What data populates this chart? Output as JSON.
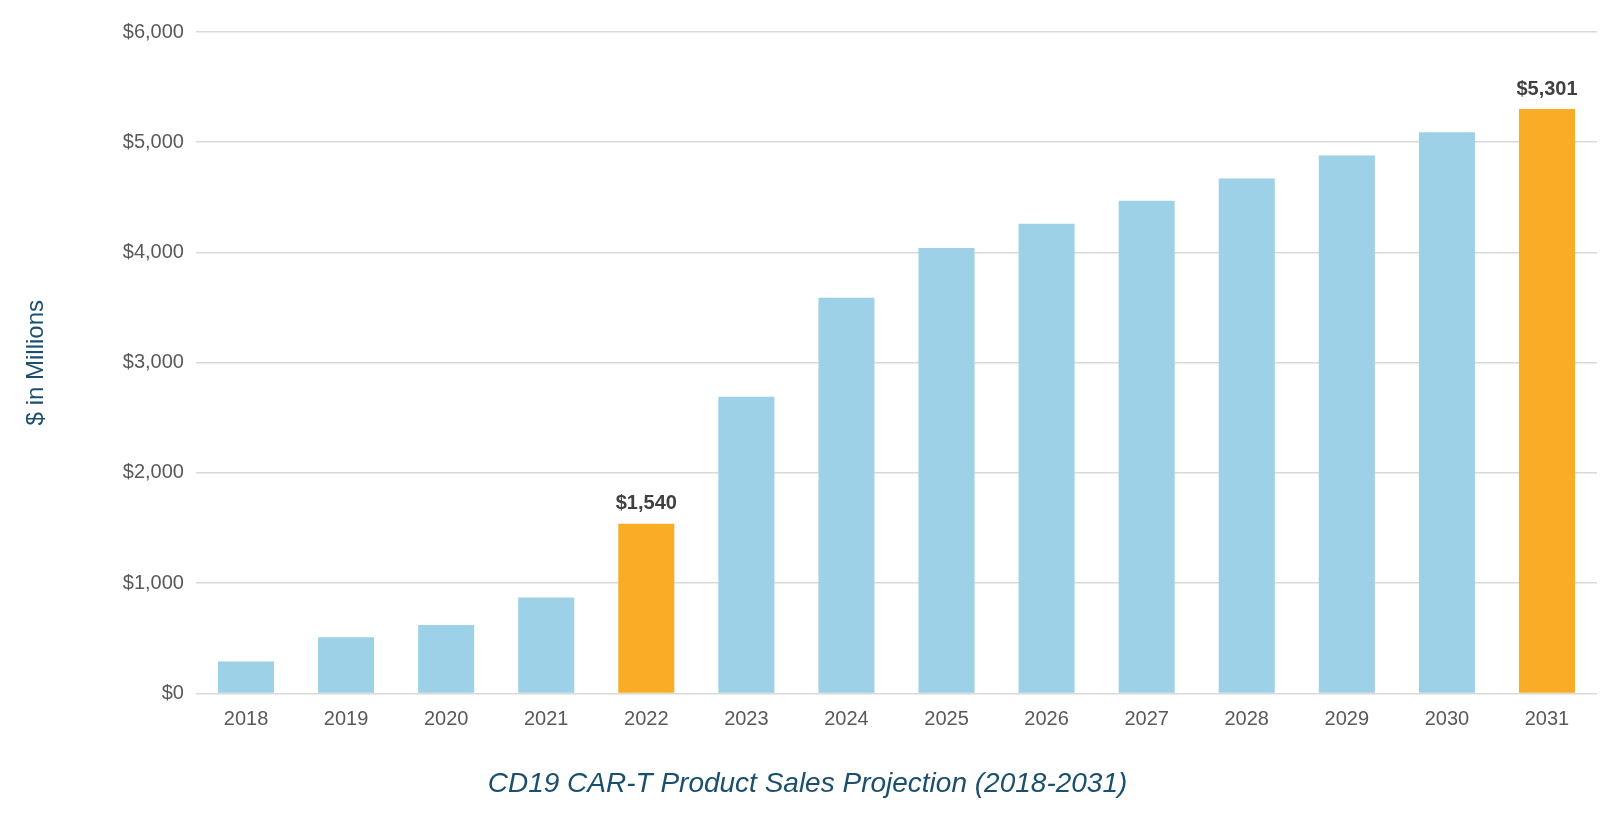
{
  "chart_data": {
    "type": "bar",
    "title": "CD19 CAR-T Product Sales Projection (2018-2031)",
    "ylabel": "$ in Millions",
    "categories": [
      "2018",
      "2019",
      "2020",
      "2021",
      "2022",
      "2023",
      "2024",
      "2025",
      "2026",
      "2027",
      "2028",
      "2029",
      "2030",
      "2031"
    ],
    "values": [
      290,
      510,
      620,
      870,
      1540,
      2690,
      3590,
      4040,
      4260,
      4470,
      4670,
      4880,
      5090,
      5301
    ],
    "colors": [
      "#9dd1e7",
      "#9dd1e7",
      "#9dd1e7",
      "#9dd1e7",
      "#f9ac25",
      "#9dd1e7",
      "#9dd1e7",
      "#9dd1e7",
      "#9dd1e7",
      "#9dd1e7",
      "#9dd1e7",
      "#9dd1e7",
      "#9dd1e7",
      "#f9ac25"
    ],
    "value_labels": [
      null,
      null,
      null,
      null,
      "$1,540",
      null,
      null,
      null,
      null,
      null,
      null,
      null,
      null,
      "$5,301"
    ],
    "ylim": [
      0,
      6000
    ],
    "yticks": [
      {
        "value": 0,
        "label": "$0"
      },
      {
        "value": 1000,
        "label": "$1,000"
      },
      {
        "value": 2000,
        "label": "$2,000"
      },
      {
        "value": 3000,
        "label": "$3,000"
      },
      {
        "value": 4000,
        "label": "$4,000"
      },
      {
        "value": 5000,
        "label": "$5,000"
      },
      {
        "value": 6000,
        "label": "$6,000"
      }
    ],
    "grid": "y",
    "legend": false
  }
}
